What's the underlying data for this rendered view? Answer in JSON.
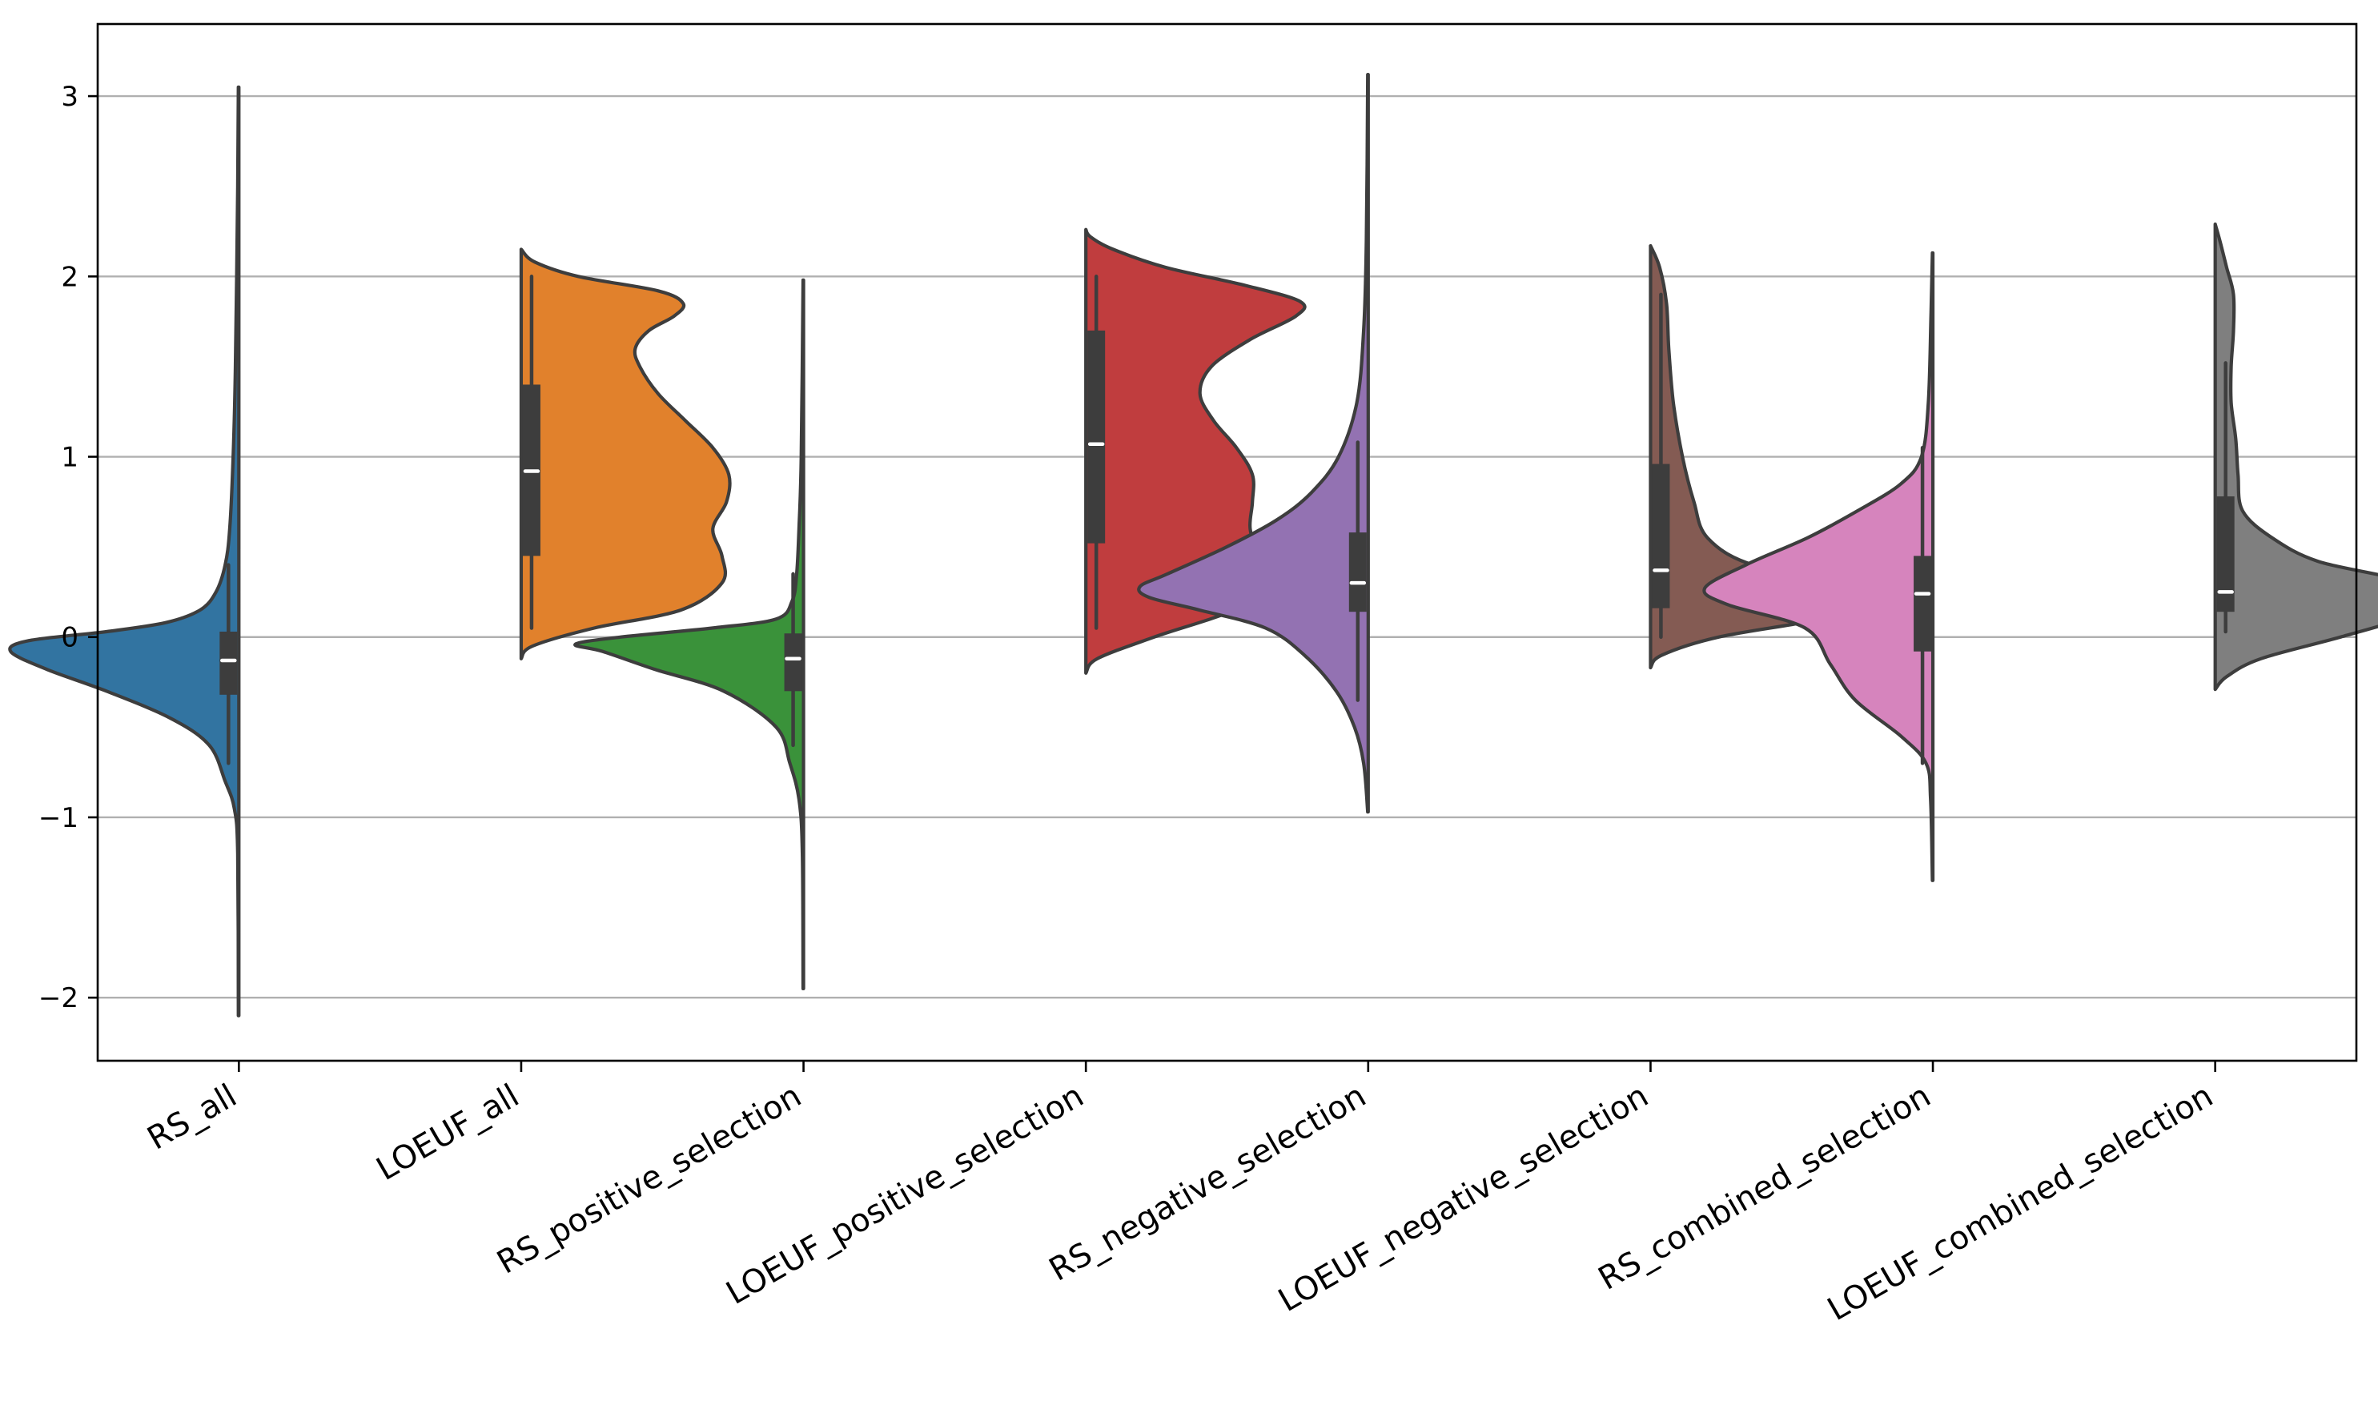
{
  "chart_data": {
    "type": "violin",
    "title": "",
    "xlabel": "",
    "ylabel": "",
    "ylim": [
      -2.35,
      3.4
    ],
    "yticks": [
      -2,
      -1,
      0,
      1,
      2,
      3
    ],
    "ytick_labels": [
      "−2",
      "−1",
      "0",
      "1",
      "2",
      "3"
    ],
    "grid": "horizontal",
    "categories": [
      "RS_all",
      "LOEUF_all",
      "RS_positive_selection",
      "LOEUF_positive_selection",
      "RS_negative_selection",
      "LOEUF_negative_selection",
      "RS_combined_selection",
      "LOEUF_combined_selection"
    ],
    "series": [
      {
        "category": "RS_all",
        "color": "#3274a1",
        "side": "left",
        "min": -2.1,
        "max": 3.05,
        "q1": -0.32,
        "median": -0.13,
        "q3": 0.03,
        "whisker_low": -0.7,
        "whisker_high": 0.4,
        "density": [
          [
            -2.1,
            0.002
          ],
          [
            -1.2,
            0.005
          ],
          [
            -0.95,
            0.02
          ],
          [
            -0.8,
            0.06
          ],
          [
            -0.6,
            0.13
          ],
          [
            -0.45,
            0.3
          ],
          [
            -0.3,
            0.58
          ],
          [
            -0.18,
            0.84
          ],
          [
            -0.08,
            1.0
          ],
          [
            -0.02,
            0.92
          ],
          [
            0.03,
            0.58
          ],
          [
            0.08,
            0.32
          ],
          [
            0.15,
            0.17
          ],
          [
            0.25,
            0.1
          ],
          [
            0.4,
            0.06
          ],
          [
            0.6,
            0.04
          ],
          [
            1.0,
            0.025
          ],
          [
            1.5,
            0.015
          ],
          [
            2.5,
            0.005
          ],
          [
            3.05,
            0.002
          ]
        ]
      },
      {
        "category": "LOEUF_all",
        "color": "#e1812c",
        "side": "right",
        "min": -0.12,
        "max": 2.15,
        "q1": 0.45,
        "median": 0.92,
        "q3": 1.4,
        "whisker_low": 0.05,
        "whisker_high": 2.0,
        "density": [
          [
            -0.12,
            0.0
          ],
          [
            -0.05,
            0.05
          ],
          [
            0.05,
            0.32
          ],
          [
            0.15,
            0.7
          ],
          [
            0.3,
            0.88
          ],
          [
            0.45,
            0.88
          ],
          [
            0.6,
            0.84
          ],
          [
            0.75,
            0.9
          ],
          [
            0.9,
            0.91
          ],
          [
            1.05,
            0.84
          ],
          [
            1.2,
            0.72
          ],
          [
            1.35,
            0.6
          ],
          [
            1.5,
            0.52
          ],
          [
            1.6,
            0.5
          ],
          [
            1.7,
            0.56
          ],
          [
            1.78,
            0.67
          ],
          [
            1.85,
            0.71
          ],
          [
            1.92,
            0.6
          ],
          [
            2.0,
            0.25
          ],
          [
            2.08,
            0.06
          ],
          [
            2.15,
            0.0
          ]
        ]
      },
      {
        "category": "RS_positive_selection",
        "color": "#3a923a",
        "side": "left",
        "min": -1.95,
        "max": 1.98,
        "q1": -0.3,
        "median": -0.12,
        "q3": 0.02,
        "whisker_low": -0.6,
        "whisker_high": 0.35,
        "density": [
          [
            -1.95,
            0.002
          ],
          [
            -1.2,
            0.005
          ],
          [
            -0.9,
            0.02
          ],
          [
            -0.7,
            0.06
          ],
          [
            -0.5,
            0.12
          ],
          [
            -0.3,
            0.35
          ],
          [
            -0.18,
            0.65
          ],
          [
            -0.08,
            0.88
          ],
          [
            -0.04,
            1.0
          ],
          [
            0.0,
            0.8
          ],
          [
            0.05,
            0.4
          ],
          [
            0.1,
            0.12
          ],
          [
            0.2,
            0.05
          ],
          [
            0.35,
            0.03
          ],
          [
            0.6,
            0.02
          ],
          [
            1.0,
            0.01
          ],
          [
            1.98,
            0.002
          ]
        ]
      },
      {
        "category": "LOEUF_positive_selection",
        "color": "#c03d3e",
        "side": "right",
        "min": -0.2,
        "max": 2.26,
        "q1": 0.52,
        "median": 1.07,
        "q3": 1.7,
        "whisker_low": 0.05,
        "whisker_high": 2.0,
        "density": [
          [
            -0.2,
            0.0
          ],
          [
            -0.12,
            0.05
          ],
          [
            0.0,
            0.3
          ],
          [
            0.15,
            0.65
          ],
          [
            0.3,
            0.82
          ],
          [
            0.45,
            0.76
          ],
          [
            0.6,
            0.72
          ],
          [
            0.75,
            0.73
          ],
          [
            0.9,
            0.73
          ],
          [
            1.05,
            0.66
          ],
          [
            1.2,
            0.56
          ],
          [
            1.35,
            0.5
          ],
          [
            1.5,
            0.55
          ],
          [
            1.65,
            0.72
          ],
          [
            1.78,
            0.92
          ],
          [
            1.86,
            0.94
          ],
          [
            1.95,
            0.7
          ],
          [
            2.05,
            0.35
          ],
          [
            2.15,
            0.12
          ],
          [
            2.22,
            0.02
          ],
          [
            2.26,
            0.0
          ]
        ]
      },
      {
        "category": "RS_negative_selection",
        "color": "#9372b2",
        "side": "left",
        "min": -0.97,
        "max": 3.12,
        "q1": 0.14,
        "median": 0.3,
        "q3": 0.58,
        "whisker_low": -0.35,
        "whisker_high": 1.08,
        "density": [
          [
            -0.97,
            0.002
          ],
          [
            -0.7,
            0.02
          ],
          [
            -0.5,
            0.06
          ],
          [
            -0.3,
            0.14
          ],
          [
            -0.1,
            0.28
          ],
          [
            0.05,
            0.45
          ],
          [
            0.15,
            0.74
          ],
          [
            0.22,
            0.96
          ],
          [
            0.28,
            1.0
          ],
          [
            0.35,
            0.88
          ],
          [
            0.5,
            0.62
          ],
          [
            0.65,
            0.4
          ],
          [
            0.8,
            0.25
          ],
          [
            1.0,
            0.13
          ],
          [
            1.3,
            0.05
          ],
          [
            1.7,
            0.02
          ],
          [
            2.2,
            0.008
          ],
          [
            3.12,
            0.002
          ]
        ]
      },
      {
        "category": "LOEUF_negative_selection",
        "color": "#845b53",
        "side": "right",
        "min": -0.17,
        "max": 2.17,
        "q1": 0.16,
        "median": 0.37,
        "q3": 0.96,
        "whisker_low": 0.0,
        "whisker_high": 1.9,
        "density": [
          [
            -0.17,
            0.0
          ],
          [
            -0.1,
            0.05
          ],
          [
            0.0,
            0.3
          ],
          [
            0.1,
            0.75
          ],
          [
            0.2,
            1.0
          ],
          [
            0.3,
            0.88
          ],
          [
            0.4,
            0.45
          ],
          [
            0.55,
            0.25
          ],
          [
            0.75,
            0.19
          ],
          [
            1.0,
            0.14
          ],
          [
            1.3,
            0.1
          ],
          [
            1.6,
            0.08
          ],
          [
            1.85,
            0.07
          ],
          [
            2.05,
            0.04
          ],
          [
            2.17,
            0.0
          ]
        ]
      },
      {
        "category": "RS_combined_selection",
        "color": "#d684bd",
        "side": "left",
        "min": -1.35,
        "max": 2.13,
        "q1": -0.08,
        "median": 0.24,
        "q3": 0.45,
        "whisker_low": -0.7,
        "whisker_high": 1.05,
        "density": [
          [
            -1.35,
            0.002
          ],
          [
            -0.9,
            0.01
          ],
          [
            -0.7,
            0.03
          ],
          [
            -0.55,
            0.14
          ],
          [
            -0.35,
            0.34
          ],
          [
            -0.15,
            0.45
          ],
          [
            0.05,
            0.56
          ],
          [
            0.18,
            0.9
          ],
          [
            0.27,
            1.0
          ],
          [
            0.4,
            0.82
          ],
          [
            0.55,
            0.55
          ],
          [
            0.7,
            0.33
          ],
          [
            0.85,
            0.14
          ],
          [
            1.0,
            0.05
          ],
          [
            1.3,
            0.02
          ],
          [
            1.8,
            0.008
          ],
          [
            2.13,
            0.002
          ]
        ]
      },
      {
        "category": "LOEUF_combined_selection",
        "color": "#7f7f7f",
        "side": "right",
        "min": -0.29,
        "max": 2.29,
        "q1": 0.14,
        "median": 0.25,
        "q3": 0.78,
        "whisker_low": 0.03,
        "whisker_high": 1.52,
        "density": [
          [
            -0.29,
            0.0
          ],
          [
            -0.22,
            0.05
          ],
          [
            -0.12,
            0.2
          ],
          [
            0.0,
            0.55
          ],
          [
            0.12,
            0.86
          ],
          [
            0.22,
            0.96
          ],
          [
            0.32,
            0.8
          ],
          [
            0.42,
            0.45
          ],
          [
            0.55,
            0.25
          ],
          [
            0.7,
            0.12
          ],
          [
            0.9,
            0.1
          ],
          [
            1.1,
            0.09
          ],
          [
            1.3,
            0.07
          ],
          [
            1.5,
            0.07
          ],
          [
            1.7,
            0.08
          ],
          [
            1.9,
            0.08
          ],
          [
            2.05,
            0.05
          ],
          [
            2.2,
            0.02
          ],
          [
            2.29,
            0.0
          ]
        ]
      }
    ]
  }
}
